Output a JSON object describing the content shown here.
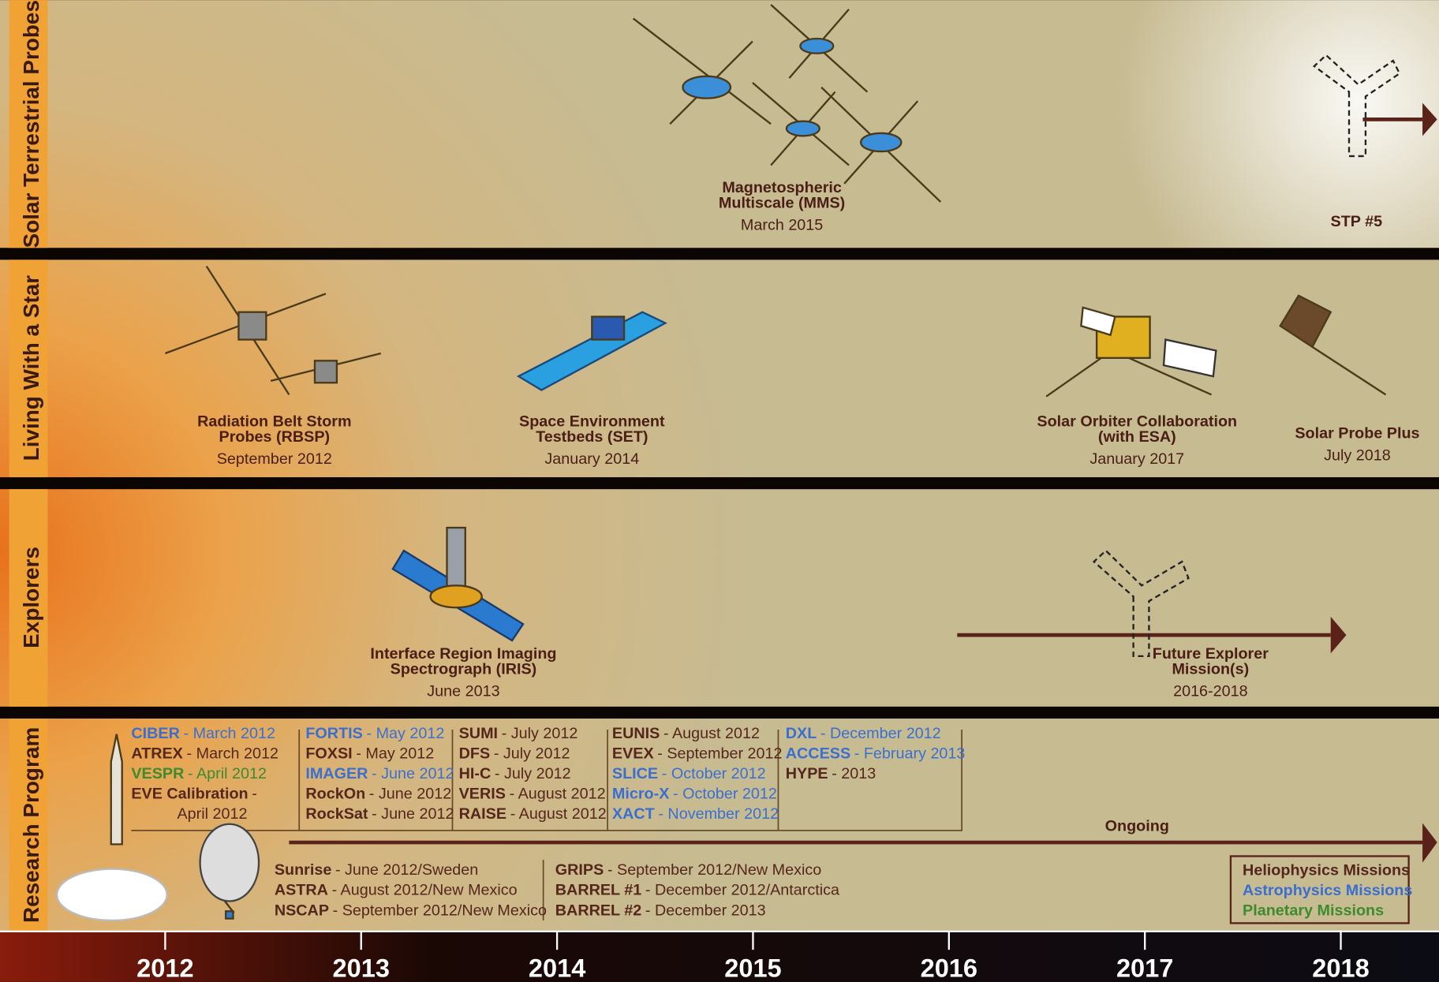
{
  "rows": [
    {
      "label": "Solar Terrestrial Probes"
    },
    {
      "label": "Living With a Star"
    },
    {
      "label": "Explorers"
    },
    {
      "label": "Research Program"
    }
  ],
  "missions": [
    {
      "name": [
        "Magnetospheric",
        "Multiscale (MMS)"
      ],
      "date": "March 2015"
    },
    {
      "name": [
        "STP #5"
      ]
    },
    {
      "name": [
        "Radiation Belt Storm",
        "Probes (RBSP)"
      ],
      "date": "September 2012"
    },
    {
      "name": [
        "Space Environment",
        "Testbeds (SET)"
      ],
      "date": "January 2014"
    },
    {
      "name": [
        "Solar Orbiter Collaboration",
        "(with ESA)"
      ],
      "date": "January 2017"
    },
    {
      "name": [
        "Solar Probe Plus"
      ],
      "date": "July 2018"
    },
    {
      "name": [
        "Interface Region Imaging",
        "Spectrograph (IRIS)"
      ],
      "date": "June 2013"
    },
    {
      "name": [
        "Future Explorer",
        "Mission(s)"
      ],
      "date": "2016-2018"
    }
  ],
  "research": {
    "columns": [
      [
        {
          "name": "CIBER",
          "detail": "- March 2012",
          "color": "#3a6fd0"
        },
        {
          "name": "ATREX",
          "detail": "- March 2012",
          "color": "#55261b"
        },
        {
          "name": "VESPR",
          "detail": "- April 2012",
          "color": "#3f8a2e"
        },
        {
          "name": "EVE Calibration",
          "detail": "-",
          "color": "#55261b"
        },
        {
          "name": "",
          "detail": "April 2012",
          "color": "#55261b"
        }
      ],
      [
        {
          "name": "FORTIS",
          "detail": "- May 2012",
          "color": "#3a6fd0"
        },
        {
          "name": "FOXSI",
          "detail": "- May 2012",
          "color": "#55261b"
        },
        {
          "name": "IMAGER",
          "detail": "- June 2012",
          "color": "#3a6fd0"
        },
        {
          "name": "RockOn",
          "detail": "- June 2012",
          "color": "#55261b"
        },
        {
          "name": "RockSat",
          "detail": "- June 2012",
          "color": "#55261b"
        }
      ],
      [
        {
          "name": "SUMI",
          "detail": "- July 2012",
          "color": "#55261b"
        },
        {
          "name": "DFS",
          "detail": "- July 2012",
          "color": "#55261b"
        },
        {
          "name": "HI-C",
          "detail": "- July 2012",
          "color": "#55261b"
        },
        {
          "name": "VERIS",
          "detail": "- August 2012",
          "color": "#55261b"
        },
        {
          "name": "RAISE",
          "detail": "- August 2012",
          "color": "#55261b"
        }
      ],
      [
        {
          "name": "EUNIS",
          "detail": "- August 2012",
          "color": "#55261b"
        },
        {
          "name": "EVEX",
          "detail": "- September 2012",
          "color": "#55261b"
        },
        {
          "name": "SLICE",
          "detail": "- October 2012",
          "color": "#3a6fd0"
        },
        {
          "name": "Micro-X",
          "detail": "- October 2012",
          "color": "#3a6fd0"
        },
        {
          "name": "XACT",
          "detail": "- November 2012",
          "color": "#3a6fd0"
        }
      ],
      [
        {
          "name": "DXL",
          "detail": "- December 2012",
          "color": "#3a6fd0"
        },
        {
          "name": "ACCESS",
          "detail": "- February 2013",
          "color": "#3a6fd0"
        },
        {
          "name": "HYPE",
          "detail": "- 2013",
          "color": "#55261b"
        }
      ]
    ],
    "balloons": [
      [
        {
          "name": "Sunrise",
          "detail": "- June 2012/Sweden",
          "color": "#55261b"
        },
        {
          "name": "ASTRA",
          "detail": "- August 2012/New Mexico",
          "color": "#55261b"
        },
        {
          "name": "NSCAP",
          "detail": "- September 2012/New Mexico",
          "color": "#55261b"
        }
      ],
      [
        {
          "name": "GRIPS",
          "detail": "- September 2012/New Mexico",
          "color": "#55261b"
        },
        {
          "name": "BARREL #1",
          "detail": "- December 2012/Antarctica",
          "color": "#55261b"
        },
        {
          "name": "BARREL #2",
          "detail": "- December 2013",
          "color": "#55261b"
        }
      ]
    ],
    "ongoing": "Ongoing"
  },
  "legend": [
    {
      "label": "Heliophysics Missions",
      "color": "#55261b"
    },
    {
      "label": "Astrophysics Missions",
      "color": "#3a6fd0"
    },
    {
      "label": "Planetary Missions",
      "color": "#3f8a2e"
    }
  ],
  "timeline": {
    "years": [
      2012,
      2013,
      2014,
      2015,
      2016,
      2017,
      2018
    ]
  }
}
